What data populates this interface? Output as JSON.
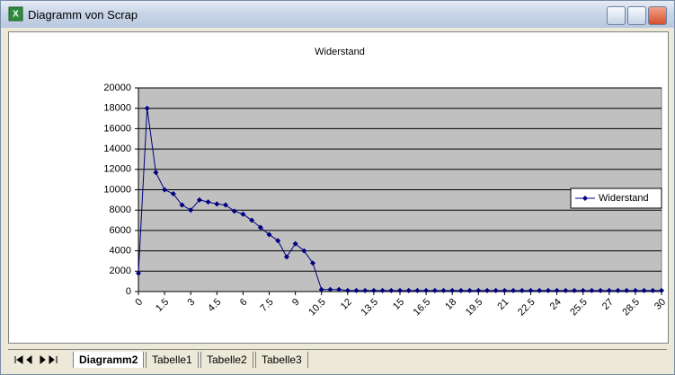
{
  "window": {
    "title": "Diagramm von Scrap"
  },
  "tabs": [
    "Diagramm2",
    "Tabelle1",
    "Tabelle2",
    "Tabelle3"
  ],
  "chart_data": {
    "type": "line",
    "title": "Widerstand",
    "x": [
      0,
      0.5,
      1,
      1.5,
      2,
      2.5,
      3,
      3.5,
      4,
      4.5,
      5,
      5.5,
      6,
      6.5,
      7,
      7.5,
      8,
      8.5,
      9,
      9.5,
      10,
      10.5,
      11,
      11.5,
      12,
      12.5,
      13,
      13.5,
      14,
      14.5,
      15,
      15.5,
      16,
      16.5,
      17,
      17.5,
      18,
      18.5,
      19,
      19.5,
      20,
      20.5,
      21,
      21.5,
      22,
      22.5,
      23,
      23.5,
      24,
      24.5,
      25,
      25.5,
      26,
      26.5,
      27,
      27.5,
      28,
      28.5,
      29,
      29.5,
      30
    ],
    "series": [
      {
        "name": "Widerstand",
        "color": "#000080",
        "values": [
          1800,
          18000,
          11700,
          10000,
          9600,
          8500,
          8000,
          9000,
          8800,
          8600,
          8500,
          7900,
          7600,
          7000,
          6300,
          5600,
          5000,
          3400,
          4700,
          4000,
          2800,
          200,
          200,
          200,
          100,
          100,
          100,
          100,
          100,
          100,
          100,
          100,
          100,
          100,
          100,
          100,
          100,
          100,
          100,
          100,
          100,
          100,
          100,
          100,
          100,
          100,
          100,
          100,
          100,
          100,
          100,
          100,
          100,
          100,
          100,
          100,
          100,
          100,
          100,
          100,
          100
        ]
      }
    ],
    "xlim": [
      0,
      30
    ],
    "xticks": [
      0,
      1.5,
      3,
      4.5,
      6,
      7.5,
      9,
      10.5,
      12,
      13.5,
      15,
      16.5,
      18,
      19.5,
      21,
      22.5,
      24,
      25.5,
      27,
      28.5,
      30
    ],
    "ylim": [
      0,
      20000
    ],
    "yticks": [
      0,
      2000,
      4000,
      6000,
      8000,
      10000,
      12000,
      14000,
      16000,
      18000,
      20000
    ],
    "grid": true,
    "legend": "right"
  }
}
